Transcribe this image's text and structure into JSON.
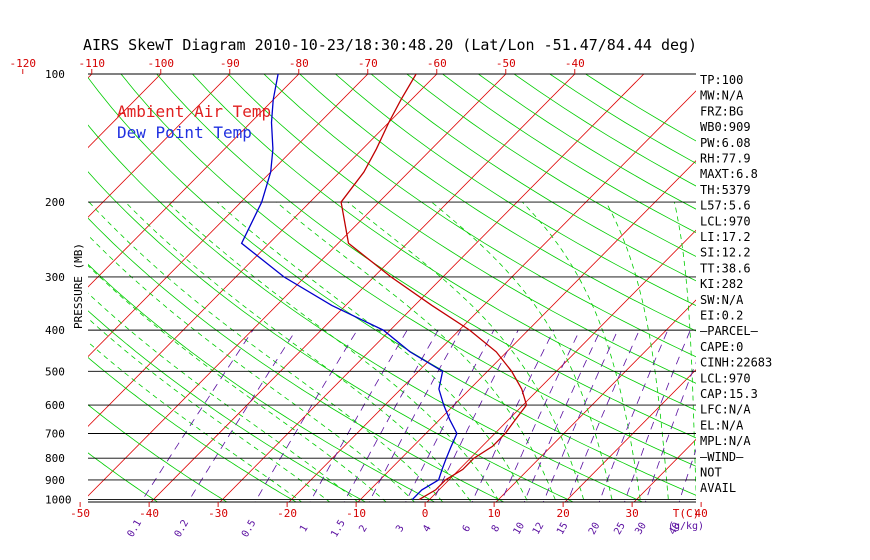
{
  "chart_data": {
    "type": "line",
    "title": "AIRS SkewT Diagram 2010-10-23/18:30:48.20 (Lat/Lon -51.47/84.44 deg)",
    "ylabel": "PRESSURE (MB)",
    "xlabel": "T(C)",
    "mixing_ratio_unit": "(g/kg)",
    "y_scale": "log",
    "ylim": [
      1025,
      100
    ],
    "pressure_ticks": [
      100,
      200,
      300,
      400,
      500,
      600,
      700,
      800,
      900,
      1000
    ],
    "bottom_temp_ticks": [
      -50,
      -40,
      -30,
      -20,
      -10,
      0,
      10,
      20,
      30,
      40
    ],
    "top_temp_ticks": [
      -120,
      -110,
      -100,
      -90,
      -80,
      -70,
      -60,
      -50,
      -40
    ],
    "mixing_ratio_ticks": [
      "0.1",
      "0.2",
      "0.5",
      "1",
      "1.5",
      "2",
      "3",
      "4",
      "6",
      "8",
      "10",
      "12",
      "15",
      "20",
      "25",
      "30",
      "40"
    ],
    "legend": [
      "Ambient Air Temp",
      "Dew Point Temp"
    ],
    "grid": true,
    "series": [
      {
        "name": "Ambient Air Temp",
        "color": "#c00000",
        "points": [
          [
            1000,
            -1.5
          ],
          [
            950,
            -0.5
          ],
          [
            900,
            -0.5
          ],
          [
            850,
            0.5
          ],
          [
            800,
            0.5
          ],
          [
            750,
            1.5
          ],
          [
            700,
            1.5
          ],
          [
            650,
            1.0
          ],
          [
            600,
            0.5
          ],
          [
            550,
            -2.5
          ],
          [
            500,
            -6.5
          ],
          [
            450,
            -11.5
          ],
          [
            400,
            -18.5
          ],
          [
            350,
            -27.5
          ],
          [
            300,
            -37.5
          ],
          [
            250,
            -48.5
          ],
          [
            200,
            -55.5
          ],
          [
            170,
            -56.5
          ],
          [
            150,
            -58
          ],
          [
            130,
            -60
          ],
          [
            115,
            -61.5
          ],
          [
            100,
            -63
          ]
        ]
      },
      {
        "name": "Dew Point Temp",
        "color": "#0000cc",
        "points": [
          [
            1000,
            -2.5
          ],
          [
            950,
            -2.5
          ],
          [
            900,
            -1.5
          ],
          [
            850,
            -2.5
          ],
          [
            800,
            -3.5
          ],
          [
            750,
            -4.5
          ],
          [
            700,
            -5.5
          ],
          [
            650,
            -8.5
          ],
          [
            600,
            -11.5
          ],
          [
            550,
            -14.5
          ],
          [
            500,
            -16.5
          ],
          [
            450,
            -24
          ],
          [
            400,
            -31
          ],
          [
            350,
            -42
          ],
          [
            300,
            -53
          ],
          [
            250,
            -64
          ],
          [
            200,
            -67
          ],
          [
            170,
            -70
          ],
          [
            150,
            -73
          ],
          [
            130,
            -77
          ],
          [
            115,
            -80
          ],
          [
            100,
            -83
          ]
        ]
      }
    ],
    "indices": [
      "TP:100",
      "MW:N/A",
      "FRZ:BG",
      "WB0:909",
      "PW:6.08",
      "RH:77.9",
      "MAXT:6.8",
      "TH:5379",
      "L57:5.6",
      "LCL:970",
      "LI:17.2",
      "SI:12.2",
      "TT:38.6",
      "KI:282",
      "SW:N/A",
      "EI:0.2",
      "–PARCEL–",
      "CAPE:0",
      "CINH:22683",
      "LCL:970",
      "CAP:15.3",
      "LFC:N/A",
      "EL:N/A",
      "MPL:N/A",
      "–WIND–",
      "NOT",
      "AVAIL"
    ]
  },
  "colors": {
    "isotherm": "#dd0000",
    "dry_adiabat": "#00cc00",
    "moist_adiabat": "#00cc00",
    "mixing_ratio": "#5a0fa0",
    "temperature": "#c00000",
    "dewpoint": "#0000cc"
  }
}
